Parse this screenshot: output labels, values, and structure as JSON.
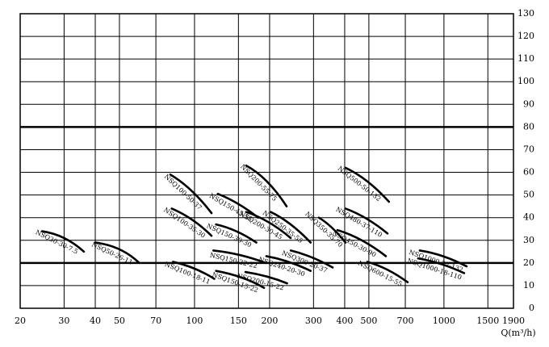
{
  "chart_data": {
    "type": "line",
    "x_label": "Q(m³/h)",
    "xscale": "log",
    "xlim": [
      20,
      1900
    ],
    "ylim": [
      0,
      130
    ],
    "xticks": [
      20,
      30,
      40,
      50,
      70,
      100,
      150,
      200,
      300,
      400,
      500,
      700,
      1000,
      1500,
      1900
    ],
    "yticks": [
      0,
      10,
      20,
      30,
      40,
      50,
      60,
      70,
      80,
      90,
      100,
      110,
      120,
      130
    ],
    "grid": true,
    "thick_grid_at": [
      20,
      80
    ],
    "color": "#000000",
    "series": [
      {
        "name": "NSQ30-30-7.5",
        "x": [
          24.5,
          30,
          36
        ],
        "values": [
          34,
          31,
          25
        ]
      },
      {
        "name": "NSQ50-26-11",
        "x": [
          40,
          50,
          60
        ],
        "values": [
          29,
          26,
          20
        ]
      },
      {
        "name": "NSQ100-18-11",
        "x": [
          82,
          100,
          120
        ],
        "values": [
          20.5,
          17.5,
          13
        ]
      },
      {
        "name": "NSQ150-15-22",
        "x": [
          122,
          155,
          190
        ],
        "values": [
          16.5,
          13.5,
          9
        ]
      },
      {
        "name": "NSQ200-15-22",
        "x": [
          160,
          195,
          235
        ],
        "values": [
          16,
          14,
          11
        ]
      },
      {
        "name": "NSQ100-50-37",
        "x": [
          80,
          97,
          117
        ],
        "values": [
          59,
          52,
          42
        ]
      },
      {
        "name": "NSQ100-35-30",
        "x": [
          81,
          98,
          117
        ],
        "values": [
          44,
          39,
          32
        ]
      },
      {
        "name": "NSQ150-45-55",
        "x": [
          124,
          150,
          180
        ],
        "values": [
          50.5,
          46,
          40
        ]
      },
      {
        "name": "NSQ150-30-30",
        "x": [
          122,
          147,
          177
        ],
        "values": [
          37,
          34,
          29
        ]
      },
      {
        "name": "NSQ150-22-22",
        "x": [
          119,
          152,
          193
        ],
        "values": [
          25.5,
          23.5,
          20
        ]
      },
      {
        "name": "NSQ200-55-75",
        "x": [
          161,
          195,
          234
        ],
        "values": [
          63,
          56,
          45
        ]
      },
      {
        "name": "NSQ200-30-45",
        "x": [
          161,
          198,
          243
        ],
        "values": [
          42.5,
          38,
          31
        ]
      },
      {
        "name": "NSQ250-35-55",
        "x": [
          202,
          243,
          292
        ],
        "values": [
          42.5,
          37,
          29
        ]
      },
      {
        "name": "NSQ240-20-30",
        "x": [
          194,
          238,
          292
        ],
        "values": [
          23,
          20.5,
          16.5
        ]
      },
      {
        "name": "NSQ300-20-37",
        "x": [
          243,
          295,
          358
        ],
        "values": [
          25.5,
          22.5,
          18
        ]
      },
      {
        "name": "NSQ350-35-70",
        "x": [
          315,
          356,
          403
        ],
        "values": [
          40,
          35.5,
          29
        ]
      },
      {
        "name": "NSQ500-50-132",
        "x": [
          403,
          493,
          602
        ],
        "values": [
          62,
          56,
          47
        ]
      },
      {
        "name": "NSQ480-37-110",
        "x": [
          403,
          490,
          594
        ],
        "values": [
          44,
          39.5,
          33
        ]
      },
      {
        "name": "NSQ450-30-90",
        "x": [
          374,
          468,
          585
        ],
        "values": [
          34.5,
          30,
          23
        ]
      },
      {
        "name": "NSQ600-15-55",
        "x": [
          493,
          594,
          715
        ],
        "values": [
          20.5,
          17,
          11.5
        ]
      },
      {
        "name": "NSQ1000-22-132",
        "x": [
          800,
          990,
          1233
        ],
        "values": [
          25.5,
          23,
          18.5
        ]
      },
      {
        "name": "NSQ1000-18-110",
        "x": [
          788,
          975,
          1205
        ],
        "values": [
          22,
          19.5,
          15.5
        ]
      }
    ]
  }
}
